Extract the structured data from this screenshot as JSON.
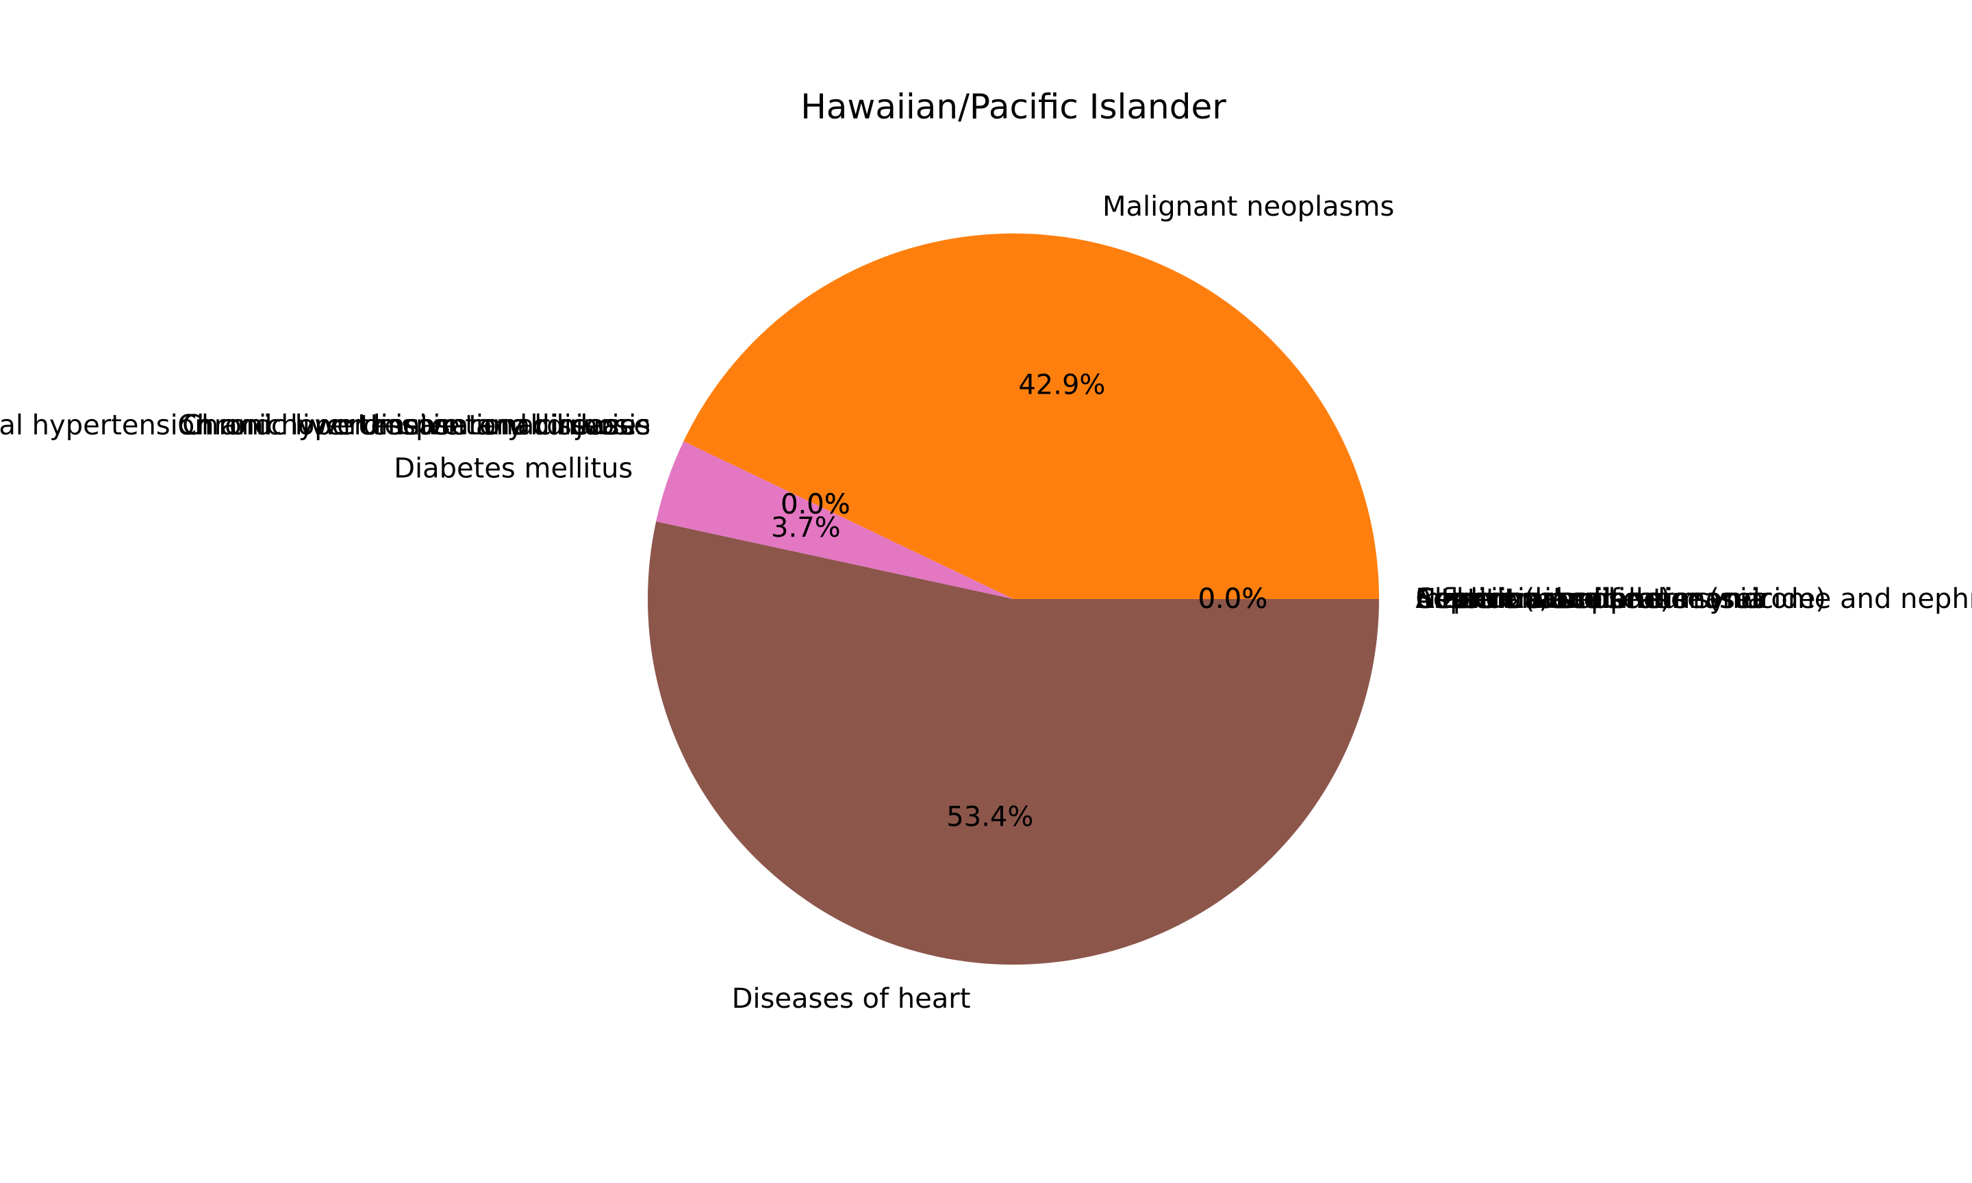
{
  "chart_data": {
    "type": "pie",
    "title": "Hawaiian/Pacific Islander",
    "slices": [
      {
        "label": "Malignant neoplasms",
        "value": 42.9,
        "pct_label": "42.9%",
        "color": "#ff7f0e"
      },
      {
        "label": "Unintentional injuries",
        "value": 0.0,
        "pct_label": "0.0%",
        "color": "#1f77b4"
      },
      {
        "label": "Chronic lower respiratory diseases",
        "value": 0.0,
        "pct_label": "0.0%",
        "color": "#2ca02c"
      },
      {
        "label": "Chronic liver disease and cirrhosis",
        "value": 0.0,
        "pct_label": "0.0%",
        "color": "#d62728"
      },
      {
        "label": "Essential hypertension and hypertensive renal disease",
        "value": 0.0,
        "pct_label": "0.0%",
        "color": "#9467bd"
      },
      {
        "label": "Diabetes mellitus",
        "value": 3.7,
        "pct_label": "3.7%",
        "color": "#e377c2"
      },
      {
        "label": "Diseases of heart",
        "value": 53.4,
        "pct_label": "53.4%",
        "color": "#8c564b"
      },
      {
        "label": "Alzheimer's disease",
        "value": 0.0,
        "pct_label": "0.0%",
        "color": "#7f7f7f"
      },
      {
        "label": "Cerebrovascular diseases",
        "value": 0.0,
        "pct_label": "0.0%",
        "color": "#bcbd22"
      },
      {
        "label": "Intentional self-harm (suicide)",
        "value": 0.0,
        "pct_label": "0.0%",
        "color": "#17becf"
      },
      {
        "label": "Assault (homicide)",
        "value": 0.0,
        "pct_label": "0.0%",
        "color": "#1f77b4"
      },
      {
        "label": "Nephritis, nephrotic syndrome and nephrosis",
        "value": 0.0,
        "pct_label": "0.0%",
        "color": "#ff7f0e"
      },
      {
        "label": "Septicemia",
        "value": 0.0,
        "pct_label": "0.0%",
        "color": "#2ca02c"
      },
      {
        "label": "Influenza and pneumonia",
        "value": 0.0,
        "pct_label": "0.0%",
        "color": "#d62728"
      }
    ]
  }
}
